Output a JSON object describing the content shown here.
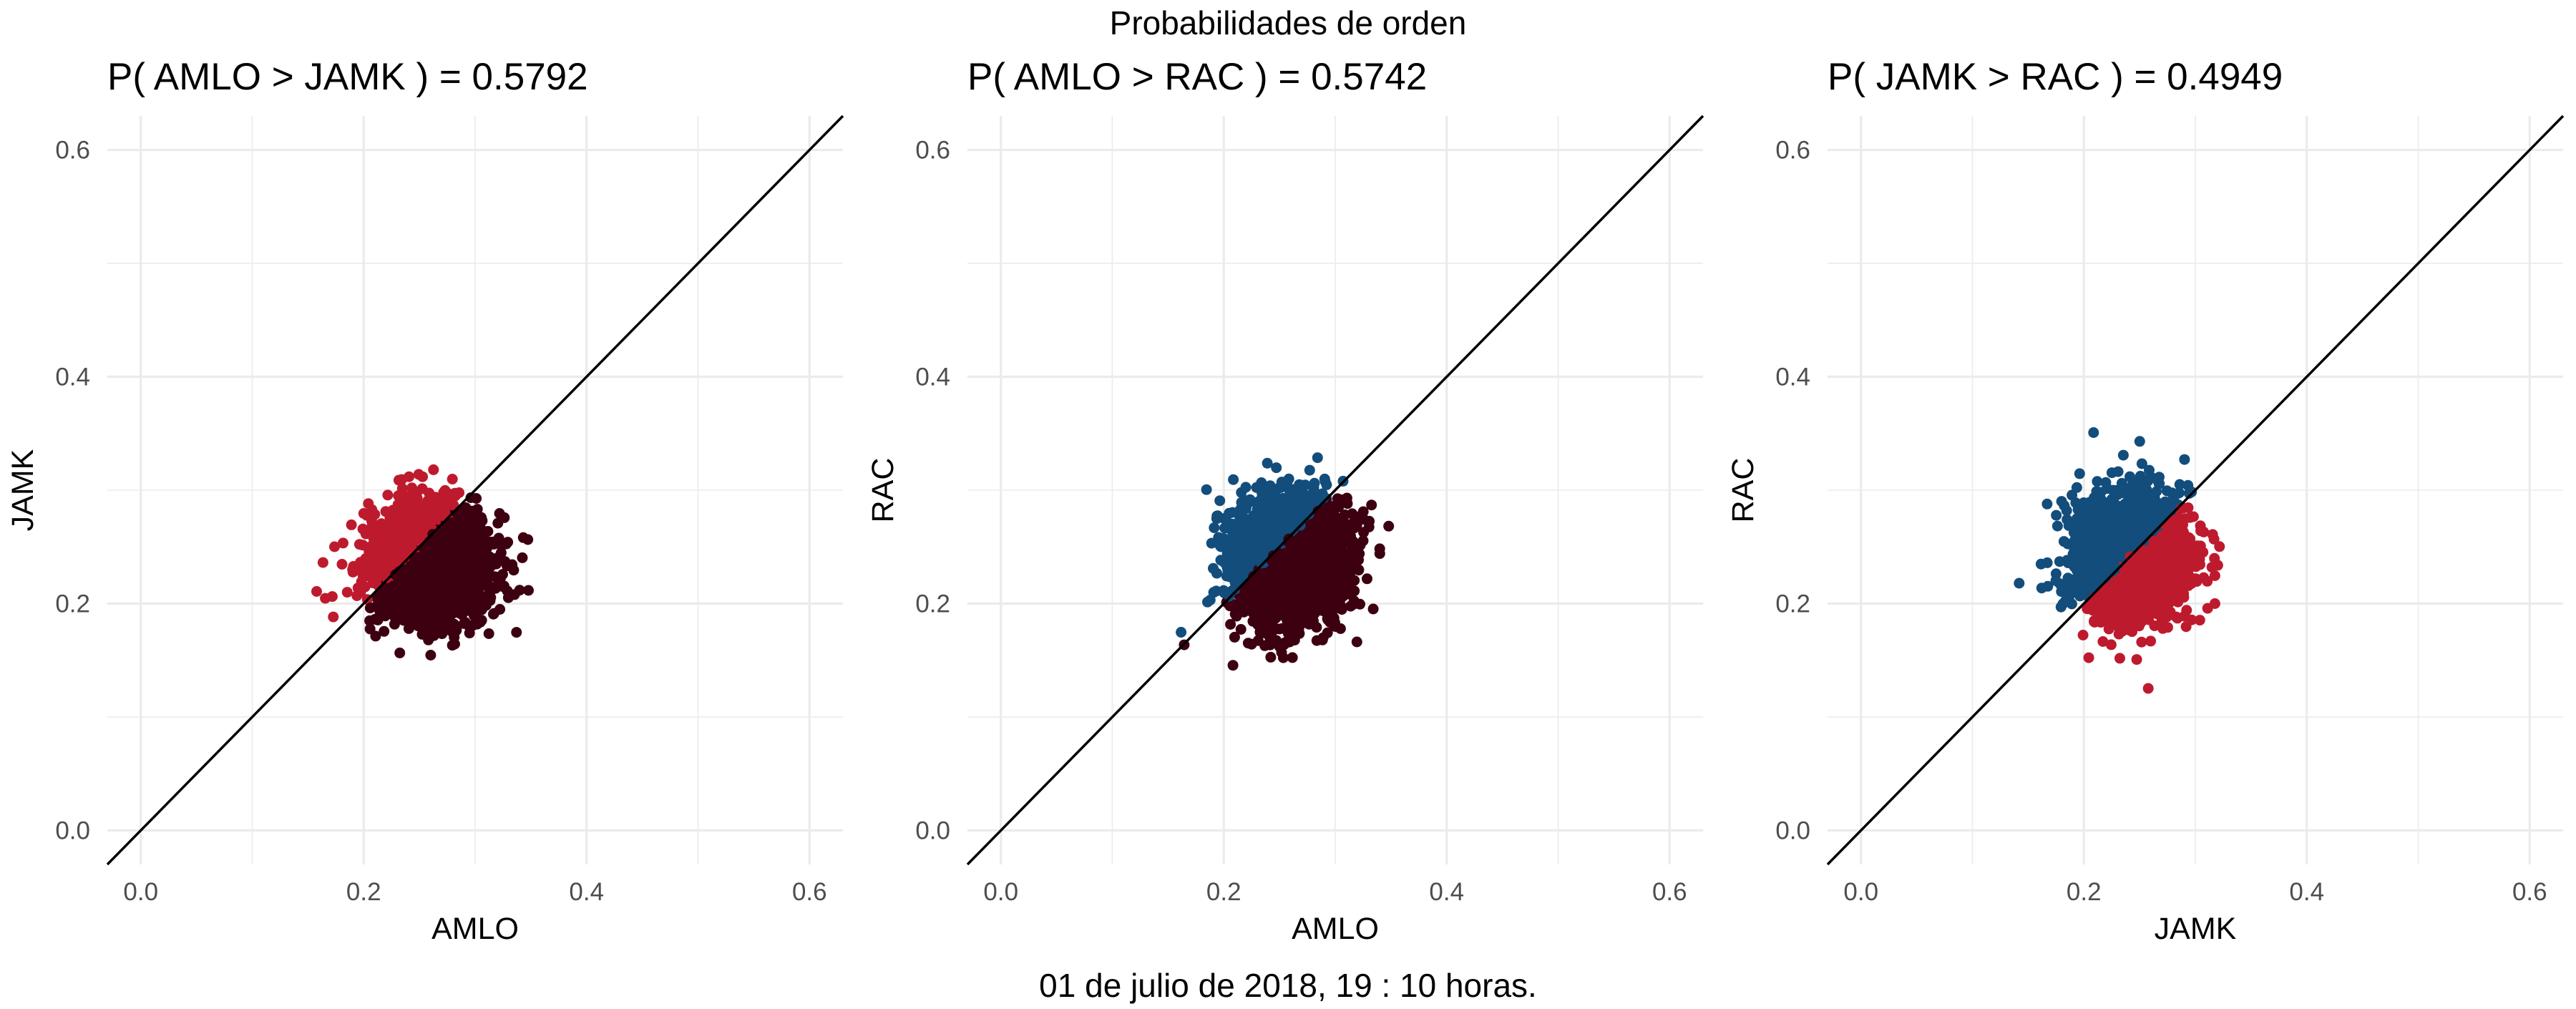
{
  "title": "Probabilidades de orden",
  "footer": "01 de julio de 2018, 19 : 10 horas.",
  "colors": {
    "AMLO": "#3c0011",
    "JAMK": "#be1a2e",
    "RAC": "#124d7c",
    "grid": "#ebebeb",
    "diagonal": "#000000"
  },
  "chart_data": [
    {
      "type": "scatter",
      "title": "P( AMLO > JAMK ) = 0.5792",
      "xlabel": "AMLO",
      "ylabel": "JAMK",
      "xlim": [
        -0.03,
        0.63
      ],
      "ylim": [
        -0.03,
        0.63
      ],
      "xticks": [
        "0.0",
        "0.2",
        "0.4",
        "0.6"
      ],
      "yticks": [
        "0.0",
        "0.2",
        "0.4",
        "0.6"
      ],
      "reference_line": "y = x",
      "cloud": {
        "x_mean": 0.26,
        "x_sd": 0.026,
        "y_mean": 0.235,
        "y_sd": 0.025,
        "n": 2600
      },
      "above_color": "JAMK",
      "below_color": "AMLO"
    },
    {
      "type": "scatter",
      "title": "P( AMLO > RAC ) = 0.5742",
      "xlabel": "AMLO",
      "ylabel": "RAC",
      "xlim": [
        -0.03,
        0.63
      ],
      "ylim": [
        -0.03,
        0.63
      ],
      "xticks": [
        "0.0",
        "0.2",
        "0.4",
        "0.6"
      ],
      "yticks": [
        "0.0",
        "0.2",
        "0.4",
        "0.6"
      ],
      "reference_line": "y = x",
      "cloud": {
        "x_mean": 0.258,
        "x_sd": 0.026,
        "y_mean": 0.24,
        "y_sd": 0.027,
        "n": 2600
      },
      "above_color": "RAC",
      "below_color": "AMLO"
    },
    {
      "type": "scatter",
      "title": "P( JAMK > RAC ) = 0.4949",
      "xlabel": "JAMK",
      "ylabel": "RAC",
      "xlim": [
        -0.03,
        0.63
      ],
      "ylim": [
        -0.03,
        0.63
      ],
      "xticks": [
        "0.0",
        "0.2",
        "0.4",
        "0.6"
      ],
      "yticks": [
        "0.0",
        "0.2",
        "0.4",
        "0.6"
      ],
      "reference_line": "y = x",
      "cloud": {
        "x_mean": 0.243,
        "x_sd": 0.025,
        "y_mean": 0.242,
        "y_sd": 0.026,
        "n": 2600
      },
      "above_color": "RAC",
      "below_color": "JAMK"
    }
  ]
}
